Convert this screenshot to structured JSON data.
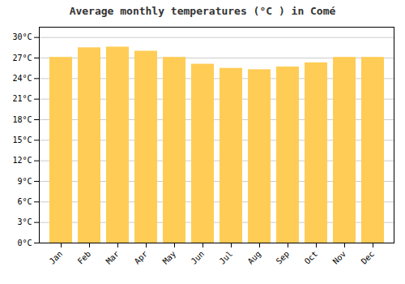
{
  "chart_data": {
    "type": "bar",
    "title": "Average monthly temperatures (°C ) in Comé",
    "categories": [
      "Jan",
      "Feb",
      "Mar",
      "Apr",
      "May",
      "Jun",
      "Jul",
      "Aug",
      "Sep",
      "Oct",
      "Nov",
      "Dec"
    ],
    "values": [
      27.1,
      28.5,
      28.6,
      28.0,
      27.1,
      26.1,
      25.5,
      25.3,
      25.7,
      26.3,
      27.1,
      27.1
    ],
    "color": "#FFCC55",
    "ylim": [
      0,
      31.5
    ],
    "yticks": [
      {
        "value": 0,
        "label": "0°C"
      },
      {
        "value": 3,
        "label": "3°C"
      },
      {
        "value": 6,
        "label": "6°C"
      },
      {
        "value": 9,
        "label": "9°C"
      },
      {
        "value": 12,
        "label": "12°C"
      },
      {
        "value": 15,
        "label": "15°C"
      },
      {
        "value": 18,
        "label": "18°C"
      },
      {
        "value": 21,
        "label": "21°C"
      },
      {
        "value": 24,
        "label": "24°C"
      },
      {
        "value": 27,
        "label": "27°C"
      },
      {
        "value": 30,
        "label": "30°C"
      }
    ],
    "grid": true
  }
}
